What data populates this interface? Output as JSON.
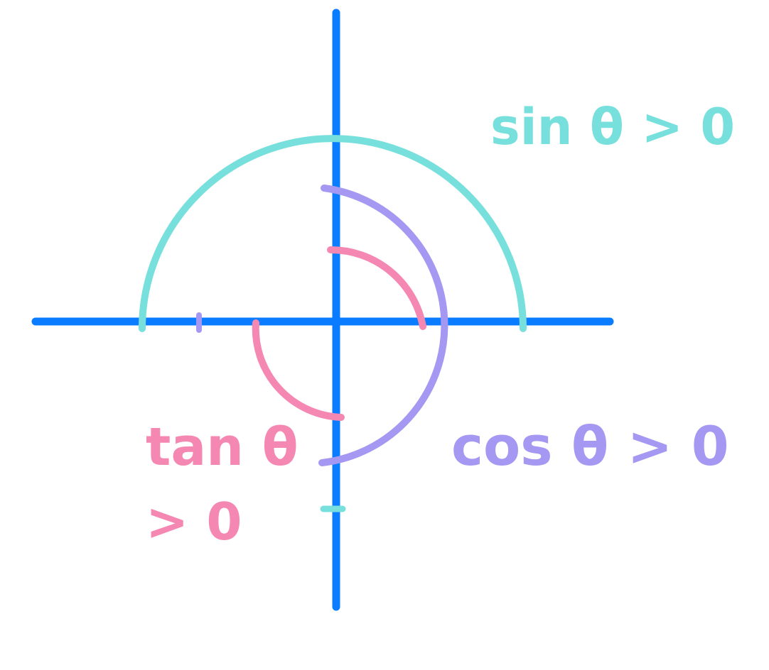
{
  "colors": {
    "axes": "#0a7cff",
    "sin": "#78e0dc",
    "cos": "#a498f2",
    "tan": "#f587b3",
    "background": "#ffffff"
  },
  "labels": {
    "sin": "sin θ > 0",
    "cos": "cos θ > 0",
    "tan_line1": "tan θ",
    "tan_line2": "> 0"
  }
}
